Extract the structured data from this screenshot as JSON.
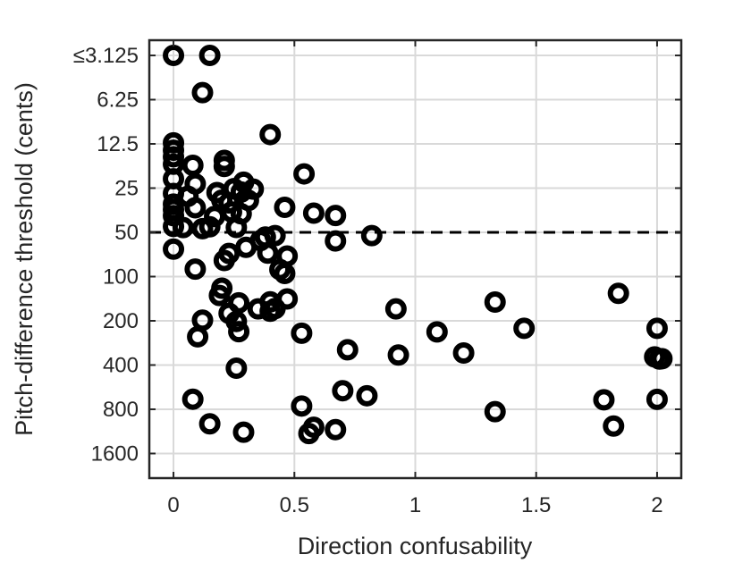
{
  "chart_data": {
    "type": "scatter",
    "xlabel": "Direction confusability",
    "ylabel": "Pitch-difference threshold (cents)",
    "xlim": [
      -0.1,
      2.1
    ],
    "ylim_log2": [
      1.3,
      11.2
    ],
    "y_scale": "log2",
    "y_direction": "reversed",
    "grid": true,
    "x_ticks": [
      {
        "value": 0,
        "label": "0"
      },
      {
        "value": 0.5,
        "label": "0.5"
      },
      {
        "value": 1,
        "label": "1"
      },
      {
        "value": 1.5,
        "label": "1.5"
      },
      {
        "value": 2,
        "label": "2"
      }
    ],
    "y_ticks": [
      {
        "value": 3.125,
        "label": "≤3.125"
      },
      {
        "value": 6.25,
        "label": "6.25"
      },
      {
        "value": 12.5,
        "label": "12.5"
      },
      {
        "value": 25,
        "label": "25"
      },
      {
        "value": 50,
        "label": "50"
      },
      {
        "value": 100,
        "label": "100"
      },
      {
        "value": 200,
        "label": "200"
      },
      {
        "value": 400,
        "label": "400"
      },
      {
        "value": 800,
        "label": "800"
      },
      {
        "value": 1600,
        "label": "1600"
      }
    ],
    "reference_line": {
      "y": 50,
      "style": "dashed"
    },
    "points": [
      [
        0,
        3.125
      ],
      [
        0.15,
        3.125
      ],
      [
        0.12,
        5.6
      ],
      [
        0.4,
        10.8
      ],
      [
        0,
        12.3
      ],
      [
        0,
        13.8
      ],
      [
        0,
        15.3
      ],
      [
        0,
        17.2
      ],
      [
        0.08,
        17.5
      ],
      [
        0.21,
        16.2
      ],
      [
        0.21,
        17.8
      ],
      [
        0.54,
        20
      ],
      [
        0,
        21.6
      ],
      [
        0.09,
        23.4
      ],
      [
        0.29,
        22.8
      ],
      [
        0.25,
        25.2
      ],
      [
        0.33,
        25.4
      ],
      [
        0.18,
        26.8
      ],
      [
        0.28,
        26.6
      ],
      [
        0,
        27.2
      ],
      [
        0.06,
        28.4
      ],
      [
        0,
        32.1
      ],
      [
        0,
        35
      ],
      [
        0.09,
        34
      ],
      [
        0.2,
        30.2
      ],
      [
        0.23,
        31.5
      ],
      [
        0.31,
        30.3
      ],
      [
        0.46,
        33.8
      ],
      [
        0,
        38.5
      ],
      [
        0.17,
        39
      ],
      [
        0.24,
        36.3
      ],
      [
        0.28,
        37.4
      ],
      [
        0.58,
        37
      ],
      [
        0.67,
        38.4
      ],
      [
        0,
        45.6
      ],
      [
        0.04,
        46.4
      ],
      [
        0.12,
        47.2
      ],
      [
        0.15,
        45.8
      ],
      [
        0.26,
        46.3
      ],
      [
        0.38,
        53.8
      ],
      [
        0.42,
        52.6
      ],
      [
        0.36,
        56.8
      ],
      [
        0.3,
        63.2
      ],
      [
        0.67,
        57.2
      ],
      [
        0.82,
        52.6
      ],
      [
        0,
        65
      ],
      [
        0.23,
        69.6
      ],
      [
        0.21,
        77.7
      ],
      [
        0.39,
        69.2
      ],
      [
        0.47,
        72.5
      ],
      [
        0.09,
        89
      ],
      [
        0.44,
        89.5
      ],
      [
        0.46,
        95.3
      ],
      [
        0.2,
        120
      ],
      [
        0.19,
        134.5
      ],
      [
        0.27,
        151
      ],
      [
        0.4,
        148.6
      ],
      [
        0.47,
        142
      ],
      [
        0.35,
        166
      ],
      [
        0.4,
        172
      ],
      [
        0.42,
        165
      ],
      [
        0.23,
        178
      ],
      [
        0.92,
        166
      ],
      [
        0.12,
        198
      ],
      [
        0.26,
        202
      ],
      [
        0.27,
        237
      ],
      [
        0.53,
        243
      ],
      [
        1.09,
        238
      ],
      [
        1.33,
        149
      ],
      [
        1.45,
        225
      ],
      [
        1.84,
        130
      ],
      [
        2,
        225
      ],
      [
        0.1,
        257
      ],
      [
        0.72,
        315
      ],
      [
        0.93,
        342
      ],
      [
        1.2,
        331
      ],
      [
        1.99,
        352
      ],
      [
        2.01,
        364
      ],
      [
        2.02,
        362
      ],
      [
        0.26,
        420
      ],
      [
        0.08,
        683
      ],
      [
        0.7,
        598
      ],
      [
        0.8,
        647
      ],
      [
        0.53,
        760
      ],
      [
        1.33,
        830
      ],
      [
        1.78,
        690
      ],
      [
        2,
        685
      ],
      [
        0.15,
        1005
      ],
      [
        0.29,
        1145
      ],
      [
        0.58,
        1060
      ],
      [
        0.56,
        1170
      ],
      [
        0.67,
        1100
      ],
      [
        1.82,
        1040
      ]
    ]
  }
}
